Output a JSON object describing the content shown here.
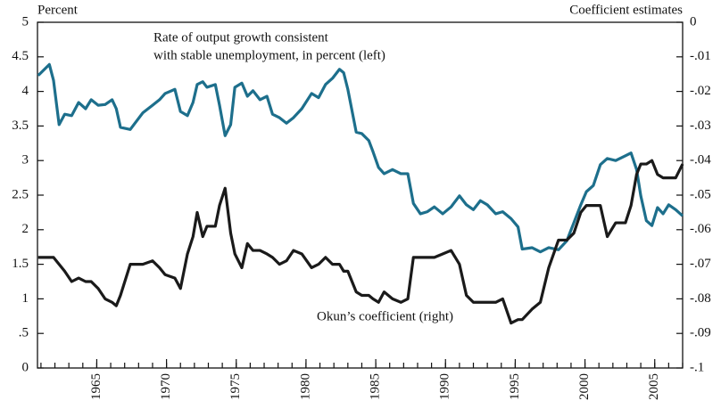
{
  "chart_data": {
    "type": "line",
    "y_axis_label": "Percent",
    "y2_axis_label": "Coefficient estimates",
    "annotations": [
      "Rate of output growth consistent",
      "with stable unemployment, in percent (left)",
      "Okun’s coefficient (right)"
    ],
    "xlim": [
      1960.75,
      2007.0
    ],
    "xticks": [
      1965,
      1970,
      1975,
      1980,
      1985,
      1990,
      1995,
      2000,
      2005
    ],
    "ylim": [
      0,
      5
    ],
    "yticks": [
      0,
      {
        "value": 0.5,
        "label": ".5"
      },
      1,
      1.5,
      2,
      2.5,
      3,
      3.5,
      4,
      4.5,
      5
    ],
    "y2lim": [
      -0.1,
      0
    ],
    "y2ticks": [
      {
        "value": -0.1,
        "label": "-.1"
      },
      {
        "value": -0.09,
        "label": "-.09"
      },
      {
        "value": -0.08,
        "label": "-.08"
      },
      {
        "value": -0.07,
        "label": "-.07"
      },
      {
        "value": -0.06,
        "label": "-.06"
      },
      {
        "value": -0.05,
        "label": "-.05"
      },
      {
        "value": -0.04,
        "label": "-.04"
      },
      {
        "value": -0.03,
        "label": "-.03"
      },
      {
        "value": -0.02,
        "label": "-.02"
      },
      {
        "value": -0.01,
        "label": "-.01"
      },
      0
    ],
    "x": [
      1960.8,
      1961.6,
      1961.9,
      1962.3,
      1962.7,
      1963.2,
      1963.7,
      1964.2,
      1964.6,
      1965.1,
      1965.6,
      1966.1,
      1966.4,
      1966.7,
      1967.4,
      1967.7,
      1968.3,
      1969.0,
      1969.5,
      1969.9,
      1970.6,
      1971.0,
      1971.5,
      1971.9,
      1972.2,
      1972.6,
      1972.9,
      1973.5,
      1973.8,
      1974.2,
      1974.6,
      1974.9,
      1975.4,
      1975.8,
      1976.2,
      1976.7,
      1977.2,
      1977.6,
      1978.1,
      1978.6,
      1979.1,
      1979.7,
      1980.4,
      1980.9,
      1981.4,
      1981.9,
      1982.4,
      1982.7,
      1983.0,
      1983.6,
      1984.0,
      1984.5,
      1984.8,
      1985.2,
      1985.6,
      1986.2,
      1986.8,
      1987.3,
      1987.7,
      1988.2,
      1988.7,
      1989.2,
      1989.8,
      1990.4,
      1991.0,
      1991.5,
      1992.0,
      1992.5,
      1993.0,
      1993.6,
      1994.1,
      1994.7,
      1995.2,
      1995.5,
      1996.2,
      1996.8,
      1997.4,
      1998.1,
      1998.7,
      1999.2,
      1999.7,
      2000.1,
      2000.6,
      2001.1,
      2001.6,
      2002.2,
      2002.9,
      2003.3,
      2003.7,
      2004.0,
      2004.4,
      2004.8,
      2005.2,
      2005.6,
      2006.0,
      2006.5,
      2007.0
    ],
    "series": [
      {
        "name": "Rate of output growth consistent with stable unemployment",
        "color": "#1d6f8c",
        "axis": "y",
        "values": [
          4.23,
          4.39,
          4.16,
          3.52,
          3.67,
          3.65,
          3.84,
          3.75,
          3.88,
          3.8,
          3.81,
          3.88,
          3.75,
          3.48,
          3.45,
          3.53,
          3.69,
          3.8,
          3.88,
          3.97,
          4.03,
          3.71,
          3.65,
          3.84,
          4.1,
          4.14,
          4.06,
          4.1,
          3.8,
          3.36,
          3.52,
          4.06,
          4.12,
          3.93,
          4.01,
          3.88,
          3.93,
          3.67,
          3.62,
          3.54,
          3.62,
          3.75,
          3.97,
          3.91,
          4.1,
          4.19,
          4.32,
          4.27,
          4.03,
          3.41,
          3.39,
          3.29,
          3.13,
          2.9,
          2.81,
          2.87,
          2.81,
          2.81,
          2.38,
          2.23,
          2.26,
          2.33,
          2.23,
          2.33,
          2.49,
          2.36,
          2.29,
          2.42,
          2.36,
          2.23,
          2.26,
          2.16,
          2.04,
          1.72,
          1.74,
          1.68,
          1.74,
          1.71,
          1.84,
          2.1,
          2.36,
          2.55,
          2.64,
          2.94,
          3.03,
          3.0,
          3.07,
          3.11,
          2.87,
          2.49,
          2.13,
          2.06,
          2.32,
          2.23,
          2.36,
          2.29,
          2.2
        ]
      },
      {
        "name": "Okun’s coefficient",
        "color": "#1a1a1a",
        "axis": "y2",
        "values": [
          -0.068,
          -0.068,
          -0.068,
          -0.07,
          -0.072,
          -0.075,
          -0.074,
          -0.075,
          -0.075,
          -0.077,
          -0.08,
          -0.081,
          -0.082,
          -0.079,
          -0.07,
          -0.07,
          -0.07,
          -0.069,
          -0.071,
          -0.073,
          -0.074,
          -0.077,
          -0.067,
          -0.062,
          -0.055,
          -0.062,
          -0.059,
          -0.059,
          -0.053,
          -0.048,
          -0.061,
          -0.067,
          -0.071,
          -0.064,
          -0.066,
          -0.066,
          -0.067,
          -0.068,
          -0.07,
          -0.069,
          -0.066,
          -0.067,
          -0.071,
          -0.07,
          -0.068,
          -0.07,
          -0.07,
          -0.072,
          -0.072,
          -0.078,
          -0.079,
          -0.079,
          -0.08,
          -0.081,
          -0.078,
          -0.08,
          -0.081,
          -0.08,
          -0.068,
          -0.068,
          -0.068,
          -0.068,
          -0.067,
          -0.066,
          -0.07,
          -0.079,
          -0.081,
          -0.081,
          -0.081,
          -0.081,
          -0.08,
          -0.087,
          -0.086,
          -0.086,
          -0.083,
          -0.081,
          -0.071,
          -0.063,
          -0.063,
          -0.061,
          -0.055,
          -0.053,
          -0.053,
          -0.053,
          -0.062,
          -0.058,
          -0.058,
          -0.053,
          -0.044,
          -0.041,
          -0.041,
          -0.04,
          -0.044,
          -0.045,
          -0.045,
          -0.045,
          -0.041
        ]
      }
    ]
  }
}
